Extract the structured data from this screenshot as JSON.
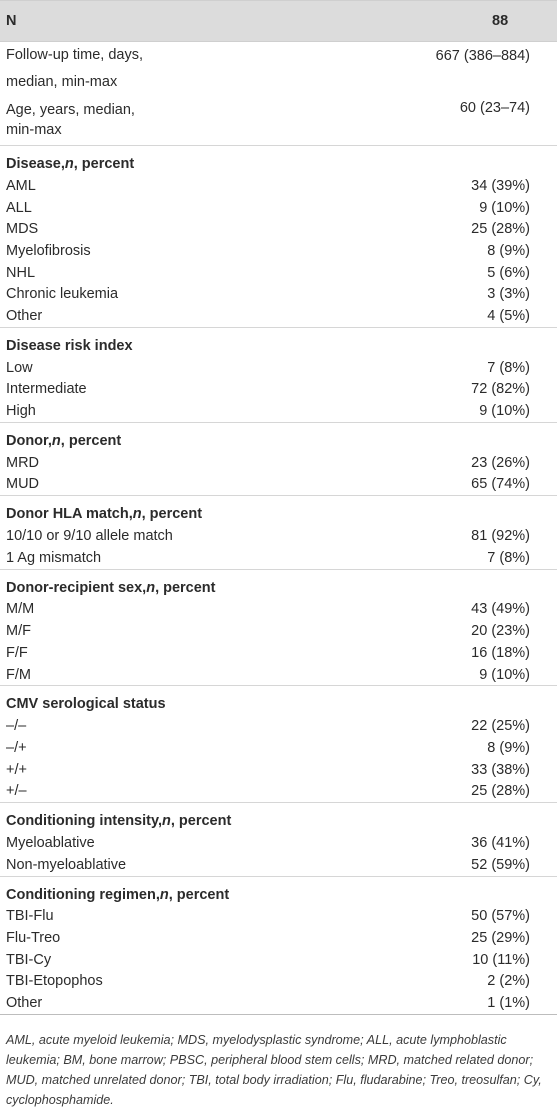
{
  "header": {
    "label": "N",
    "value": "88"
  },
  "top_rows": [
    {
      "label_lines": [
        "Follow-up time, days,",
        "median, min-max"
      ],
      "value": "667 (386–884)"
    },
    {
      "label_lines": [
        "Age, years, median,",
        "min-max"
      ],
      "value": "60 (23–74)"
    }
  ],
  "sections": [
    {
      "title_pre": "Disease, ",
      "title_italic": "n",
      "title_post": ", percent",
      "rows": [
        [
          "AML",
          "34 (39%)"
        ],
        [
          "ALL",
          "9 (10%)"
        ],
        [
          "MDS",
          "25 (28%)"
        ],
        [
          "Myelofibrosis",
          "8 (9%)"
        ],
        [
          "NHL",
          "5 (6%)"
        ],
        [
          "Chronic leukemia",
          "3 (3%)"
        ],
        [
          "Other",
          "4 (5%)"
        ]
      ]
    },
    {
      "title_pre": "Disease risk index",
      "title_italic": "",
      "title_post": "",
      "rows": [
        [
          "Low",
          "7 (8%)"
        ],
        [
          "Intermediate",
          "72 (82%)"
        ],
        [
          "High",
          "9 (10%)"
        ]
      ]
    },
    {
      "title_pre": "Donor, ",
      "title_italic": "n",
      "title_post": ", percent",
      "rows": [
        [
          "MRD",
          "23 (26%)"
        ],
        [
          "MUD",
          "65 (74%)"
        ]
      ]
    },
    {
      "title_pre": "Donor HLA match, ",
      "title_italic": "n",
      "title_post": ", percent",
      "rows": [
        [
          "10/10 or 9/10 allele match",
          "81 (92%)"
        ],
        [
          "1 Ag mismatch",
          "7 (8%)"
        ]
      ]
    },
    {
      "title_pre": "Donor-recipient sex, ",
      "title_italic": "n",
      "title_post": ", percent",
      "rows": [
        [
          "M/M",
          "43 (49%)"
        ],
        [
          "M/F",
          "20 (23%)"
        ],
        [
          "F/F",
          "16 (18%)"
        ],
        [
          "F/M",
          "9 (10%)"
        ]
      ]
    },
    {
      "title_pre": "CMV serological status",
      "title_italic": "",
      "title_post": "",
      "rows": [
        [
          "–/–",
          "22 (25%)"
        ],
        [
          "–/+",
          "8 (9%)"
        ],
        [
          "+/+",
          "33 (38%)"
        ],
        [
          "+/–",
          "25 (28%)"
        ]
      ]
    },
    {
      "title_pre": "Conditioning intensity, ",
      "title_italic": "n",
      "title_post": ", percent",
      "rows": [
        [
          "Myeloablative",
          "36 (41%)"
        ],
        [
          "Non-myeloablative",
          "52 (59%)"
        ]
      ]
    },
    {
      "title_pre": "Conditioning regimen, ",
      "title_italic": "n",
      "title_post": ", percent",
      "rows": [
        [
          "TBI-Flu",
          "50 (57%)"
        ],
        [
          "Flu-Treo",
          "25 (29%)"
        ],
        [
          "TBI-Cy",
          "10 (11%)"
        ],
        [
          "TBI-Etopophos",
          "2 (2%)"
        ],
        [
          "Other",
          "1 (1%)"
        ]
      ]
    }
  ],
  "footnote": "AML, acute myeloid leukemia; MDS, myelodysplastic syndrome; ALL, acute lymphoblastic leukemia; BM, bone marrow; PBSC, peripheral blood stem cells; MRD, matched related donor; MUD, matched unrelated donor; TBI, total body irradiation; Flu, fludarabine; Treo, treosulfan; Cy, cyclophosphamide."
}
